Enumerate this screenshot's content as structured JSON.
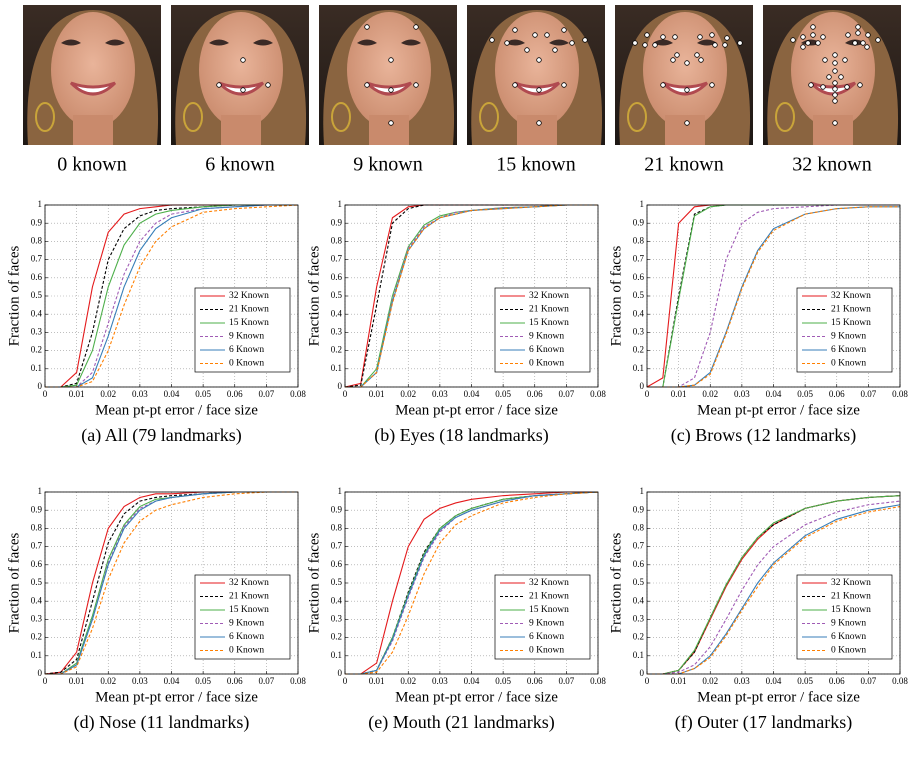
{
  "faces": [
    {
      "label": "0 known"
    },
    {
      "label": "6 known"
    },
    {
      "label": "9 known"
    },
    {
      "label": "15 known"
    },
    {
      "label": "21 known"
    },
    {
      "label": "32 known"
    }
  ],
  "chart_data": [
    {
      "type": "line",
      "caption": "(a) All (79 landmarks)",
      "xlabel": "Mean pt-pt error / face size",
      "ylabel": "Fraction of faces",
      "x": [
        0,
        0.005,
        0.01,
        0.015,
        0.02,
        0.025,
        0.03,
        0.035,
        0.04,
        0.05,
        0.06,
        0.07,
        0.08
      ],
      "xlim": [
        0,
        0.08
      ],
      "ylim": [
        0,
        1
      ],
      "xticks": [
        0,
        0.01,
        0.02,
        0.03,
        0.04,
        0.05,
        0.06,
        0.07,
        0.08
      ],
      "yticks": [
        0,
        0.1,
        0.2,
        0.3,
        0.4,
        0.5,
        0.6,
        0.7,
        0.8,
        0.9,
        1
      ],
      "grid": true,
      "legend": "lower right",
      "series": [
        {
          "name": "32 Known",
          "color": "#e41a1c",
          "dashed": false,
          "values": [
            0,
            0,
            0.08,
            0.55,
            0.85,
            0.95,
            0.98,
            0.99,
            1,
            1,
            1,
            1,
            1
          ]
        },
        {
          "name": "21 Known",
          "color": "#000000",
          "dashed": true,
          "values": [
            0,
            0,
            0.02,
            0.3,
            0.7,
            0.87,
            0.94,
            0.97,
            0.98,
            0.99,
            1,
            1,
            1
          ]
        },
        {
          "name": "15 Known",
          "color": "#4daf4a",
          "dashed": false,
          "values": [
            0,
            0,
            0.01,
            0.2,
            0.55,
            0.78,
            0.9,
            0.95,
            0.97,
            0.99,
            1,
            1,
            1
          ]
        },
        {
          "name": "9 Known",
          "color": "#a05bb5",
          "dashed": true,
          "values": [
            0,
            0,
            0,
            0.08,
            0.35,
            0.62,
            0.8,
            0.9,
            0.95,
            0.98,
            0.99,
            1,
            1
          ]
        },
        {
          "name": "6 Known",
          "color": "#377eb8",
          "dashed": false,
          "values": [
            0,
            0,
            0,
            0.05,
            0.28,
            0.55,
            0.75,
            0.87,
            0.93,
            0.98,
            0.99,
            1,
            1
          ]
        },
        {
          "name": "0 Known",
          "color": "#ff7f00",
          "dashed": true,
          "values": [
            0,
            0,
            0,
            0.03,
            0.2,
            0.45,
            0.66,
            0.8,
            0.88,
            0.96,
            0.98,
            0.99,
            1
          ]
        }
      ]
    },
    {
      "type": "line",
      "caption": "(b) Eyes (18 landmarks)",
      "xlabel": "Mean pt-pt error / face size",
      "ylabel": "Fraction of faces",
      "x": [
        0,
        0.005,
        0.01,
        0.015,
        0.02,
        0.025,
        0.03,
        0.035,
        0.04,
        0.05,
        0.06,
        0.07,
        0.08
      ],
      "xlim": [
        0,
        0.08
      ],
      "ylim": [
        0,
        1
      ],
      "xticks": [
        0,
        0.01,
        0.02,
        0.03,
        0.04,
        0.05,
        0.06,
        0.07,
        0.08
      ],
      "yticks": [
        0,
        0.1,
        0.2,
        0.3,
        0.4,
        0.5,
        0.6,
        0.7,
        0.8,
        0.9,
        1
      ],
      "grid": true,
      "legend": "lower right",
      "series": [
        {
          "name": "32 Known",
          "color": "#e41a1c",
          "dashed": false,
          "values": [
            0,
            0.02,
            0.55,
            0.93,
            0.99,
            1,
            1,
            1,
            1,
            1,
            1,
            1,
            1
          ]
        },
        {
          "name": "21 Known",
          "color": "#000000",
          "dashed": true,
          "values": [
            0,
            0.01,
            0.45,
            0.9,
            0.98,
            1,
            1,
            1,
            1,
            1,
            1,
            1,
            1
          ]
        },
        {
          "name": "15 Known",
          "color": "#4daf4a",
          "dashed": false,
          "values": [
            0,
            0,
            0.1,
            0.5,
            0.77,
            0.89,
            0.94,
            0.96,
            0.97,
            0.985,
            0.99,
            1,
            1
          ]
        },
        {
          "name": "9 Known",
          "color": "#a05bb5",
          "dashed": true,
          "values": [
            0,
            0,
            0.08,
            0.48,
            0.76,
            0.88,
            0.93,
            0.96,
            0.97,
            0.985,
            0.99,
            1,
            1
          ]
        },
        {
          "name": "6 Known",
          "color": "#377eb8",
          "dashed": false,
          "values": [
            0,
            0,
            0.08,
            0.47,
            0.75,
            0.87,
            0.93,
            0.95,
            0.97,
            0.98,
            0.99,
            1,
            1
          ]
        },
        {
          "name": "0 Known",
          "color": "#ff7f00",
          "dashed": true,
          "values": [
            0,
            0,
            0.08,
            0.46,
            0.75,
            0.87,
            0.93,
            0.95,
            0.97,
            0.98,
            0.99,
            1,
            1
          ]
        }
      ]
    },
    {
      "type": "line",
      "caption": "(c) Brows (12 landmarks)",
      "xlabel": "Mean pt-pt error / face size",
      "ylabel": "Fraction of faces",
      "x": [
        0,
        0.005,
        0.01,
        0.015,
        0.02,
        0.025,
        0.03,
        0.035,
        0.04,
        0.05,
        0.06,
        0.07,
        0.08
      ],
      "xlim": [
        0,
        0.08
      ],
      "ylim": [
        0,
        1
      ],
      "xticks": [
        0,
        0.01,
        0.02,
        0.03,
        0.04,
        0.05,
        0.06,
        0.07,
        0.08
      ],
      "yticks": [
        0,
        0.1,
        0.2,
        0.3,
        0.4,
        0.5,
        0.6,
        0.7,
        0.8,
        0.9,
        1
      ],
      "grid": true,
      "legend": "lower right",
      "series": [
        {
          "name": "32 Known",
          "color": "#e41a1c",
          "dashed": false,
          "values": [
            0,
            0.05,
            0.9,
            0.99,
            1,
            1,
            1,
            1,
            1,
            1,
            1,
            1,
            1
          ]
        },
        {
          "name": "21 Known",
          "color": "#000000",
          "dashed": true,
          "values": [
            0,
            0,
            0.5,
            0.95,
            0.99,
            1,
            1,
            1,
            1,
            1,
            1,
            1,
            1
          ]
        },
        {
          "name": "15 Known",
          "color": "#4daf4a",
          "dashed": false,
          "values": [
            0,
            0,
            0.48,
            0.94,
            0.99,
            1,
            1,
            1,
            1,
            1,
            1,
            1,
            1
          ]
        },
        {
          "name": "9 Known",
          "color": "#a05bb5",
          "dashed": true,
          "values": [
            0,
            0,
            0,
            0.05,
            0.3,
            0.7,
            0.9,
            0.96,
            0.98,
            0.99,
            1,
            1,
            1
          ]
        },
        {
          "name": "6 Known",
          "color": "#377eb8",
          "dashed": false,
          "values": [
            0,
            0,
            0,
            0.01,
            0.08,
            0.3,
            0.55,
            0.75,
            0.87,
            0.95,
            0.98,
            0.99,
            0.99
          ]
        },
        {
          "name": "0 Known",
          "color": "#ff7f00",
          "dashed": true,
          "values": [
            0,
            0,
            0,
            0.01,
            0.07,
            0.29,
            0.54,
            0.74,
            0.86,
            0.95,
            0.98,
            0.99,
            0.99
          ]
        }
      ]
    },
    {
      "type": "line",
      "caption": "(d) Nose (11 landmarks)",
      "xlabel": "Mean pt-pt error / face size",
      "ylabel": "Fraction of faces",
      "x": [
        0,
        0.005,
        0.01,
        0.015,
        0.02,
        0.025,
        0.03,
        0.035,
        0.04,
        0.05,
        0.06,
        0.07,
        0.08
      ],
      "xlim": [
        0,
        0.08
      ],
      "ylim": [
        0,
        1
      ],
      "xticks": [
        0,
        0.01,
        0.02,
        0.03,
        0.04,
        0.05,
        0.06,
        0.07,
        0.08
      ],
      "yticks": [
        0,
        0.1,
        0.2,
        0.3,
        0.4,
        0.5,
        0.6,
        0.7,
        0.8,
        0.9,
        1
      ],
      "grid": true,
      "legend": "lower right",
      "series": [
        {
          "name": "32 Known",
          "color": "#e41a1c",
          "dashed": false,
          "values": [
            0,
            0.01,
            0.12,
            0.5,
            0.8,
            0.92,
            0.97,
            0.99,
            0.99,
            1,
            1,
            1,
            1
          ]
        },
        {
          "name": "21 Known",
          "color": "#000000",
          "dashed": true,
          "values": [
            0,
            0.01,
            0.08,
            0.4,
            0.72,
            0.88,
            0.95,
            0.97,
            0.98,
            0.99,
            1,
            1,
            1
          ]
        },
        {
          "name": "15 Known",
          "color": "#4daf4a",
          "dashed": false,
          "values": [
            0,
            0,
            0.06,
            0.32,
            0.63,
            0.82,
            0.92,
            0.96,
            0.97,
            0.99,
            1,
            1,
            1
          ]
        },
        {
          "name": "9 Known",
          "color": "#a05bb5",
          "dashed": true,
          "values": [
            0,
            0,
            0.05,
            0.3,
            0.61,
            0.81,
            0.91,
            0.95,
            0.97,
            0.99,
            1,
            1,
            1
          ]
        },
        {
          "name": "6 Known",
          "color": "#377eb8",
          "dashed": false,
          "values": [
            0,
            0,
            0.05,
            0.3,
            0.6,
            0.8,
            0.9,
            0.95,
            0.97,
            0.99,
            1,
            1,
            1
          ]
        },
        {
          "name": "0 Known",
          "color": "#ff7f00",
          "dashed": true,
          "values": [
            0,
            0,
            0.04,
            0.25,
            0.52,
            0.72,
            0.84,
            0.9,
            0.93,
            0.97,
            0.99,
            1,
            1
          ]
        }
      ]
    },
    {
      "type": "line",
      "caption": "(e) Mouth (21 landmarks)",
      "xlabel": "Mean pt-pt error / face size",
      "ylabel": "Fraction of faces",
      "x": [
        0,
        0.005,
        0.01,
        0.015,
        0.02,
        0.025,
        0.03,
        0.035,
        0.04,
        0.05,
        0.06,
        0.07,
        0.08
      ],
      "xlim": [
        0,
        0.08
      ],
      "ylim": [
        0,
        1
      ],
      "xticks": [
        0,
        0.01,
        0.02,
        0.03,
        0.04,
        0.05,
        0.06,
        0.07,
        0.08
      ],
      "yticks": [
        0,
        0.1,
        0.2,
        0.3,
        0.4,
        0.5,
        0.6,
        0.7,
        0.8,
        0.9,
        1
      ],
      "grid": true,
      "legend": "lower right",
      "series": [
        {
          "name": "32 Known",
          "color": "#e41a1c",
          "dashed": false,
          "values": [
            0,
            0,
            0.06,
            0.4,
            0.7,
            0.85,
            0.91,
            0.94,
            0.96,
            0.98,
            0.99,
            1,
            1
          ]
        },
        {
          "name": "21 Known",
          "color": "#000000",
          "dashed": true,
          "values": [
            0,
            0,
            0.02,
            0.2,
            0.45,
            0.67,
            0.8,
            0.87,
            0.91,
            0.96,
            0.98,
            0.99,
            1
          ]
        },
        {
          "name": "15 Known",
          "color": "#4daf4a",
          "dashed": false,
          "values": [
            0,
            0,
            0.02,
            0.2,
            0.44,
            0.66,
            0.8,
            0.87,
            0.91,
            0.96,
            0.98,
            0.99,
            1
          ]
        },
        {
          "name": "9 Known",
          "color": "#a05bb5",
          "dashed": true,
          "values": [
            0,
            0,
            0.02,
            0.18,
            0.42,
            0.64,
            0.78,
            0.86,
            0.9,
            0.95,
            0.98,
            0.99,
            1
          ]
        },
        {
          "name": "6 Known",
          "color": "#377eb8",
          "dashed": false,
          "values": [
            0,
            0,
            0.02,
            0.19,
            0.43,
            0.65,
            0.79,
            0.86,
            0.9,
            0.95,
            0.98,
            0.99,
            1
          ]
        },
        {
          "name": "0 Known",
          "color": "#ff7f00",
          "dashed": true,
          "values": [
            0,
            0,
            0.01,
            0.12,
            0.32,
            0.55,
            0.72,
            0.82,
            0.87,
            0.94,
            0.97,
            0.99,
            1
          ]
        }
      ]
    },
    {
      "type": "line",
      "caption": "(f) Outer (17 landmarks)",
      "xlabel": "Mean pt-pt error / face size",
      "ylabel": "Fraction of faces",
      "x": [
        0,
        0.005,
        0.01,
        0.015,
        0.02,
        0.025,
        0.03,
        0.035,
        0.04,
        0.05,
        0.06,
        0.07,
        0.08
      ],
      "xlim": [
        0,
        0.08
      ],
      "ylim": [
        0,
        1
      ],
      "xticks": [
        0,
        0.01,
        0.02,
        0.03,
        0.04,
        0.05,
        0.06,
        0.07,
        0.08
      ],
      "yticks": [
        0,
        0.1,
        0.2,
        0.3,
        0.4,
        0.5,
        0.6,
        0.7,
        0.8,
        0.9,
        1
      ],
      "grid": true,
      "legend": "lower right",
      "series": [
        {
          "name": "32 Known",
          "color": "#e41a1c",
          "dashed": false,
          "values": [
            0,
            0,
            0.02,
            0.12,
            0.3,
            0.48,
            0.63,
            0.74,
            0.82,
            0.91,
            0.95,
            0.97,
            0.98
          ]
        },
        {
          "name": "21 Known",
          "color": "#000000",
          "dashed": true,
          "values": [
            0,
            0,
            0.02,
            0.12,
            0.31,
            0.49,
            0.64,
            0.75,
            0.82,
            0.91,
            0.95,
            0.97,
            0.98
          ]
        },
        {
          "name": "15 Known",
          "color": "#4daf4a",
          "dashed": false,
          "values": [
            0,
            0,
            0.02,
            0.13,
            0.31,
            0.49,
            0.64,
            0.75,
            0.83,
            0.91,
            0.95,
            0.97,
            0.98
          ]
        },
        {
          "name": "9 Known",
          "color": "#a05bb5",
          "dashed": true,
          "values": [
            0,
            0,
            0.01,
            0.05,
            0.15,
            0.3,
            0.46,
            0.6,
            0.7,
            0.82,
            0.89,
            0.93,
            0.95
          ]
        },
        {
          "name": "6 Known",
          "color": "#377eb8",
          "dashed": false,
          "values": [
            0,
            0,
            0,
            0.03,
            0.1,
            0.22,
            0.36,
            0.5,
            0.61,
            0.76,
            0.85,
            0.9,
            0.93
          ]
        },
        {
          "name": "0 Known",
          "color": "#ff7f00",
          "dashed": true,
          "values": [
            0,
            0,
            0,
            0.03,
            0.09,
            0.21,
            0.35,
            0.48,
            0.6,
            0.75,
            0.84,
            0.89,
            0.92
          ]
        }
      ]
    }
  ]
}
